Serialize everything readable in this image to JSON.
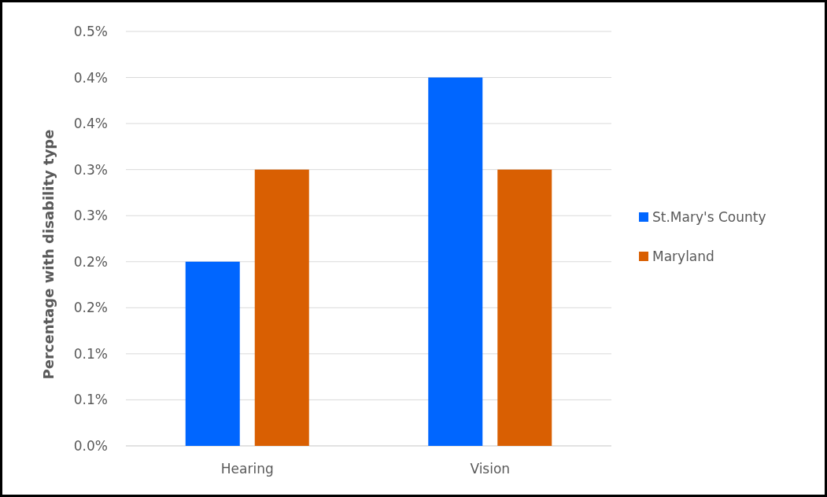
{
  "chart_data": {
    "type": "bar",
    "ylabel": "Percentage with disability type",
    "categories": [
      "Hearing",
      "Vision"
    ],
    "series": [
      {
        "name": "St.Mary's County",
        "color": "#0066ff",
        "values": [
          0.2,
          0.4
        ]
      },
      {
        "name": "Maryland",
        "color": "#d95f02",
        "values": [
          0.3,
          0.3
        ]
      }
    ],
    "ylim": [
      0,
      0.45
    ],
    "yticks": [
      {
        "value": 0,
        "label": "0.0%"
      },
      {
        "value": 0.05,
        "label": "0.1%"
      },
      {
        "value": 0.1,
        "label": "0.1%"
      },
      {
        "value": 0.15,
        "label": "0.2%"
      },
      {
        "value": 0.2,
        "label": "0.2%"
      },
      {
        "value": 0.25,
        "label": "0.3%"
      },
      {
        "value": 0.3,
        "label": "0.3%"
      },
      {
        "value": 0.35,
        "label": "0.4%"
      },
      {
        "value": 0.4,
        "label": "0.4%"
      },
      {
        "value": 0.45,
        "label": "0.5%"
      }
    ],
    "grid": "y",
    "legend": "right"
  }
}
